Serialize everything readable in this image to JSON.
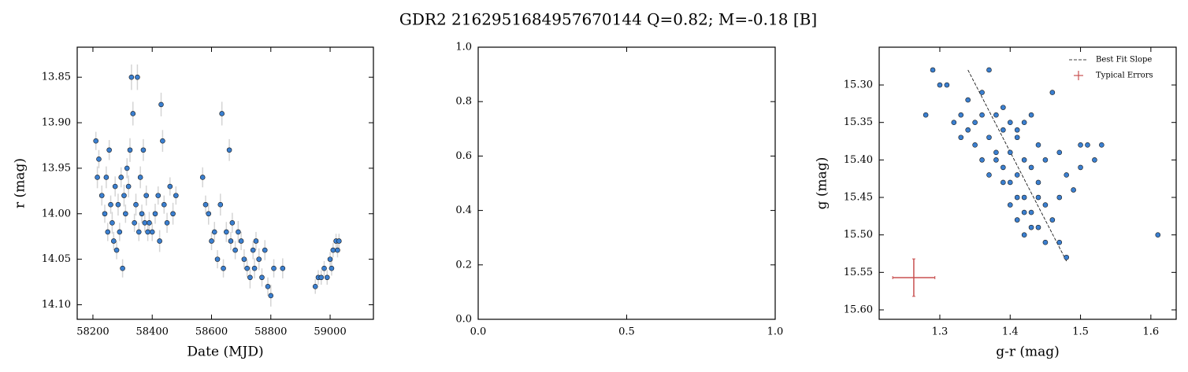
{
  "title": "GDR2 2162951684957670144  Q=0.82; M=-0.18 [B]",
  "chart_data": [
    {
      "type": "scatter",
      "xlabel": "Date (MJD)",
      "ylabel": "r (mag)",
      "xlim": [
        58147,
        59146
      ],
      "ylim": [
        14.116,
        13.817
      ],
      "xticks": [
        58200,
        58400,
        58600,
        58800,
        59000
      ],
      "yticks": [
        13.85,
        {
          "value": 13.9,
          "label": "13.90"
        },
        13.95,
        {
          "value": 14.0,
          "label": "14.00"
        },
        14.05,
        {
          "value": 14.1,
          "label": "14.10"
        }
      ],
      "color": "#3a7fd0",
      "error_color": "#d4d4d4",
      "x": [
        58210,
        58215,
        58220,
        58230,
        58240,
        58245,
        58250,
        58255,
        58260,
        58265,
        58270,
        58275,
        58280,
        58285,
        58290,
        58295,
        58300,
        58305,
        58310,
        58315,
        58320,
        58325,
        58330,
        58335,
        58340,
        58345,
        58350,
        58355,
        58360,
        58365,
        58370,
        58375,
        58380,
        58385,
        58390,
        58400,
        58410,
        58420,
        58425,
        58430,
        58435,
        58440,
        58450,
        58460,
        58470,
        58480,
        58570,
        58580,
        58590,
        58600,
        58610,
        58620,
        58630,
        58635,
        58640,
        58650,
        58660,
        58665,
        58670,
        58680,
        58690,
        58700,
        58710,
        58720,
        58730,
        58740,
        58745,
        58750,
        58760,
        58770,
        58780,
        58790,
        58800,
        58810,
        58840,
        58950,
        58960,
        58970,
        58980,
        58990,
        59000,
        59005,
        59010,
        59020,
        59025,
        59030
      ],
      "y": [
        13.92,
        13.96,
        13.94,
        13.98,
        14.0,
        13.96,
        14.02,
        13.93,
        13.99,
        14.01,
        14.03,
        13.97,
        14.04,
        13.99,
        14.02,
        13.96,
        14.06,
        13.98,
        14.0,
        13.95,
        13.97,
        13.93,
        13.85,
        13.89,
        14.01,
        13.99,
        13.85,
        14.02,
        13.96,
        14.0,
        13.93,
        14.01,
        13.98,
        14.02,
        14.01,
        14.02,
        14.0,
        13.98,
        14.03,
        13.88,
        13.92,
        13.99,
        14.01,
        13.97,
        14.0,
        13.98,
        13.96,
        13.99,
        14.0,
        14.03,
        14.02,
        14.05,
        13.99,
        13.89,
        14.06,
        14.02,
        13.93,
        14.03,
        14.01,
        14.04,
        14.02,
        14.03,
        14.05,
        14.06,
        14.07,
        14.04,
        14.06,
        14.03,
        14.05,
        14.07,
        14.04,
        14.08,
        14.09,
        14.06,
        14.06,
        14.08,
        14.07,
        14.07,
        14.06,
        14.07,
        14.05,
        14.06,
        14.04,
        14.03,
        14.04,
        14.03
      ],
      "errors": [
        0.01,
        0.012,
        0.01,
        0.011,
        0.01,
        0.012,
        0.01,
        0.011,
        0.01,
        0.012,
        0.01,
        0.011,
        0.01,
        0.012,
        0.01,
        0.011,
        0.01,
        0.012,
        0.01,
        0.011,
        0.012,
        0.013,
        0.014,
        0.013,
        0.01,
        0.012,
        0.014,
        0.01,
        0.012,
        0.01,
        0.012,
        0.01,
        0.011,
        0.01,
        0.012,
        0.01,
        0.011,
        0.01,
        0.012,
        0.013,
        0.012,
        0.01,
        0.011,
        0.01,
        0.012,
        0.01,
        0.011,
        0.01,
        0.012,
        0.01,
        0.011,
        0.01,
        0.012,
        0.013,
        0.01,
        0.011,
        0.012,
        0.01,
        0.011,
        0.01,
        0.012,
        0.01,
        0.011,
        0.01,
        0.012,
        0.01,
        0.011,
        0.01,
        0.012,
        0.01,
        0.011,
        0.01,
        0.012,
        0.01,
        0.011,
        0.008,
        0.008,
        0.008,
        0.008,
        0.008,
        0.008,
        0.008,
        0.008,
        0.008,
        0.008,
        0.008
      ]
    },
    {
      "type": "empty",
      "xlim": [
        0,
        1
      ],
      "ylim": [
        0,
        1
      ],
      "xticks": [
        {
          "value": 0,
          "label": "0.0"
        },
        0.5,
        {
          "value": 1,
          "label": "1.0"
        }
      ],
      "yticks": [
        {
          "value": 0,
          "label": "0.0"
        },
        0.2,
        0.4,
        0.6,
        0.8,
        {
          "value": 1,
          "label": "1.0"
        }
      ]
    },
    {
      "type": "scatter",
      "xlabel": "g-r (mag)",
      "ylabel": "g (mag)",
      "xlim": [
        1.2138,
        1.636
      ],
      "ylim": [
        15.6126,
        15.2496
      ],
      "xticks": [
        1.3,
        1.4,
        1.5,
        1.6
      ],
      "yticks": [
        {
          "value": 15.3,
          "label": "15.30"
        },
        15.35,
        {
          "value": 15.4,
          "label": "15.40"
        },
        15.45,
        {
          "value": 15.5,
          "label": "15.50"
        },
        15.55,
        {
          "value": 15.6,
          "label": "15.60"
        }
      ],
      "color": "#3a7fd0",
      "legend": "upper right",
      "x": [
        1.29,
        1.28,
        1.3,
        1.31,
        1.32,
        1.33,
        1.34,
        1.35,
        1.36,
        1.36,
        1.37,
        1.37,
        1.38,
        1.38,
        1.39,
        1.39,
        1.4,
        1.4,
        1.4,
        1.41,
        1.41,
        1.41,
        1.42,
        1.42,
        1.42,
        1.43,
        1.43,
        1.43,
        1.44,
        1.44,
        1.44,
        1.45,
        1.45,
        1.45,
        1.46,
        1.46,
        1.47,
        1.47,
        1.47,
        1.48,
        1.48,
        1.49,
        1.5,
        1.5,
        1.51,
        1.52,
        1.53,
        1.61,
        1.35,
        1.36,
        1.37,
        1.38,
        1.39,
        1.4,
        1.41,
        1.42,
        1.43,
        1.39,
        1.41,
        1.33,
        1.34,
        1.42,
        1.44
      ],
      "y": [
        15.28,
        15.34,
        15.3,
        15.3,
        15.35,
        15.34,
        15.36,
        15.35,
        15.31,
        15.34,
        15.28,
        15.37,
        15.34,
        15.4,
        15.36,
        15.43,
        15.35,
        15.39,
        15.46,
        15.37,
        15.42,
        15.48,
        15.35,
        15.4,
        15.45,
        15.34,
        15.41,
        15.47,
        15.38,
        15.43,
        15.49,
        15.4,
        15.46,
        15.51,
        15.31,
        15.48,
        15.39,
        15.45,
        15.51,
        15.42,
        15.53,
        15.44,
        15.41,
        15.38,
        15.38,
        15.4,
        15.38,
        15.5,
        15.38,
        15.4,
        15.42,
        15.39,
        15.41,
        15.43,
        15.45,
        15.47,
        15.49,
        15.33,
        15.36,
        15.37,
        15.32,
        15.5,
        15.45
      ],
      "lines": [
        {
          "name": "Best Fit Slope",
          "color": "#000000",
          "x": [
            1.34,
            1.48
          ],
          "y": [
            15.28,
            15.535
          ]
        }
      ],
      "errorbars": [
        {
          "name": "Typical Errors",
          "color": "#c85050",
          "x": [
            1.263
          ],
          "y": [
            15.557
          ],
          "xerr": [
            0.03
          ],
          "yerr": [
            0.025
          ]
        }
      ]
    }
  ]
}
